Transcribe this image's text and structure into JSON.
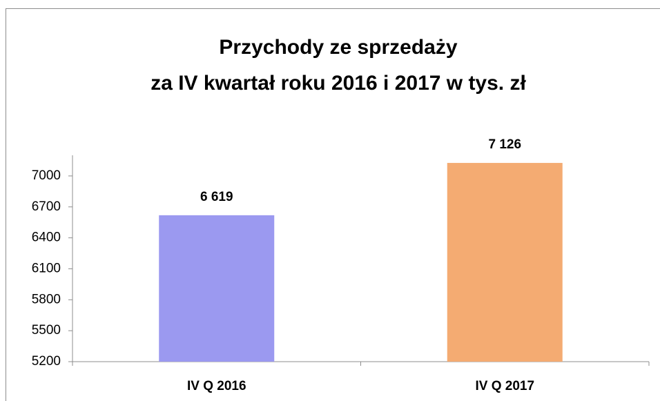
{
  "chart_data": {
    "type": "bar",
    "title": [
      "Przychody ze sprzedaży",
      "za IV kwartał roku 2016 i 2017 w tys. zł"
    ],
    "categories": [
      "IV Q 2016",
      "IV Q 2017"
    ],
    "values": [
      6619,
      7126
    ],
    "value_labels": [
      "6 619",
      "7 126"
    ],
    "colors": [
      "#9b99f0",
      "#f4ab72"
    ],
    "ylim": [
      5200,
      7200
    ],
    "yticks": [
      5200,
      5500,
      5800,
      6100,
      6400,
      6700,
      7000
    ]
  }
}
